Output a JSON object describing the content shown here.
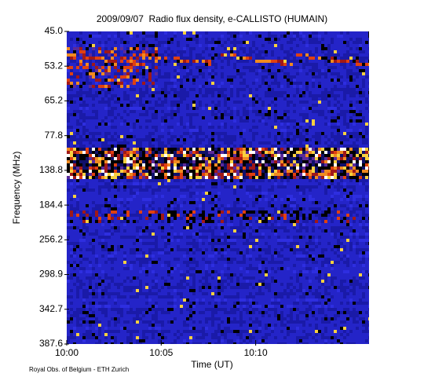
{
  "chart_data": {
    "type": "spectrogram",
    "title": "2009/09/07  Radio flux density, e-CALLISTO (HUMAIN)",
    "x_label": "Time (UT)",
    "y_label": "Frequency (MHz)",
    "footer": "Royal Obs. of Belgium - ETH Zurich",
    "xlim": [
      "10:00",
      "10:16"
    ],
    "xticks": [
      "10:00",
      "10:05",
      "10:10"
    ],
    "y_scale": "channel",
    "yticks": [
      {
        "value": 45.0,
        "label": "45.0"
      },
      {
        "value": 53.2,
        "label": "53.2"
      },
      {
        "value": 65.2,
        "label": "65.2"
      },
      {
        "value": 77.8,
        "label": "77.8"
      },
      {
        "value": 138.8,
        "label": "138.8"
      },
      {
        "value": 184.4,
        "label": "184.4"
      },
      {
        "value": 256.2,
        "label": "256.2"
      },
      {
        "value": 298.9,
        "label": "298.9"
      },
      {
        "value": 342.7,
        "label": "342.7"
      },
      {
        "value": 387.6,
        "label": "387.6"
      }
    ]
  }
}
